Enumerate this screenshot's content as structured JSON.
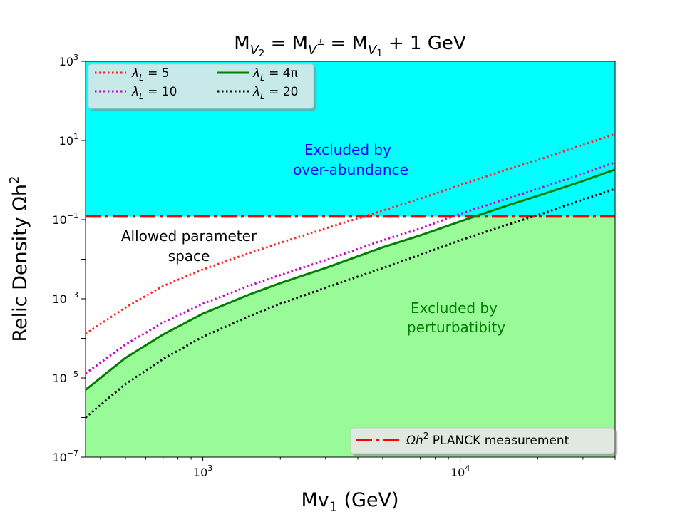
{
  "chart_data": {
    "type": "line",
    "title_parts": {
      "m": "M",
      "v2": "V",
      "v2sub": "2",
      "eq1": " = M",
      "vpm": "V",
      "vpmsup": "±",
      "eq2": " = M",
      "v1": "V",
      "v1sub": "1",
      "tail": " + 1 GeV"
    },
    "xlabel": {
      "main": "Mv",
      "sub": "1",
      "unit": " (GeV)"
    },
    "ylabel": {
      "main": "Relic Density Ωh",
      "sup": "2"
    },
    "x_scale": "log",
    "y_scale": "log",
    "xlim": [
      350,
      40000
    ],
    "ylim": [
      1e-07,
      1000
    ],
    "x_ticks": [
      {
        "value": 1000,
        "base": "10",
        "exp": "3"
      },
      {
        "value": 10000,
        "base": "10",
        "exp": "4"
      }
    ],
    "y_ticks": [
      {
        "value": 1e-07,
        "base": "10",
        "exp": "−7"
      },
      {
        "value": 1e-05,
        "base": "10",
        "exp": "−5"
      },
      {
        "value": 0.001,
        "base": "10",
        "exp": "−3"
      },
      {
        "value": 0.1,
        "base": "10",
        "exp": "−1"
      },
      {
        "value": 10,
        "base": "10",
        "exp": "1"
      },
      {
        "value": 1000,
        "base": "10",
        "exp": "3"
      }
    ],
    "planck_value": 0.12,
    "regions": [
      {
        "name": "over-abundance",
        "from": 0.12,
        "to": 1000,
        "color": "#00ffff"
      },
      {
        "name": "perturbativity",
        "from": 1e-07,
        "to": "curve:lambda_4pi",
        "color": "#98fb98"
      }
    ],
    "series": [
      {
        "id": "l5",
        "label": "λL = 5",
        "label_main": "λ",
        "label_sub": "L",
        "label_rest": " = 5",
        "color": "#ff2020",
        "style": "dotted",
        "x": [
          350,
          500,
          700,
          1000,
          1500,
          2000,
          3000,
          5000,
          7000,
          10000,
          15000,
          20000,
          30000,
          40000
        ],
        "y": [
          0.00013,
          0.0006,
          0.0021,
          0.0055,
          0.014,
          0.026,
          0.06,
          0.17,
          0.34,
          0.75,
          1.8,
          3.2,
          7.8,
          14.5
        ]
      },
      {
        "id": "l10",
        "label": "λL = 10",
        "label_main": "λ",
        "label_sub": "L",
        "label_rest": " = 10",
        "color": "#cc00cc",
        "style": "dotted",
        "x": [
          350,
          500,
          700,
          1000,
          1500,
          2000,
          3000,
          5000,
          7000,
          10000,
          15000,
          20000,
          30000,
          40000
        ],
        "y": [
          1.3e-05,
          7e-05,
          0.00025,
          0.00075,
          0.0021,
          0.004,
          0.0095,
          0.03,
          0.06,
          0.14,
          0.33,
          0.6,
          1.45,
          2.8
        ]
      },
      {
        "id": "l4pi",
        "label": "λL = 4π",
        "label_main": "λ",
        "label_sub": "L",
        "label_rest": " = 4π",
        "color": "#008000",
        "style": "solid",
        "x": [
          350,
          500,
          700,
          1000,
          1500,
          2000,
          3000,
          5000,
          7000,
          10000,
          15000,
          20000,
          30000,
          40000
        ],
        "y": [
          5e-06,
          3.2e-05,
          0.000125,
          0.00042,
          0.00125,
          0.0025,
          0.006,
          0.02,
          0.04,
          0.09,
          0.22,
          0.4,
          0.95,
          1.85
        ]
      },
      {
        "id": "l20",
        "label": "λL = 20",
        "label_main": "λ",
        "label_sub": "L",
        "label_rest": " = 20",
        "color": "#000000",
        "style": "dotted",
        "x": [
          350,
          500,
          700,
          1000,
          1500,
          2000,
          3000,
          5000,
          7000,
          10000,
          15000,
          20000,
          30000,
          40000
        ],
        "y": [
          1e-06,
          7e-06,
          3e-05,
          0.00011,
          0.00035,
          0.00075,
          0.0019,
          0.006,
          0.013,
          0.03,
          0.072,
          0.13,
          0.32,
          0.6
        ]
      }
    ],
    "planck_label": {
      "main": "Ωh",
      "sup": "2",
      "rest": " PLANCK measurement"
    },
    "planck_color": "#ff0000",
    "annotations": {
      "over_line1": "Excluded by",
      "over_line2": "over-abundance",
      "over_color": "#0000ff",
      "allowed_line1": "Allowed parameter",
      "allowed_line2": "space",
      "allowed_color": "#000000",
      "pert_line1": "Excluded by",
      "pert_line2": "perturbatibity",
      "pert_color": "#008000"
    },
    "legend_placement": "top-left",
    "planck_legend_placement": "bottom-right",
    "grid": false
  }
}
